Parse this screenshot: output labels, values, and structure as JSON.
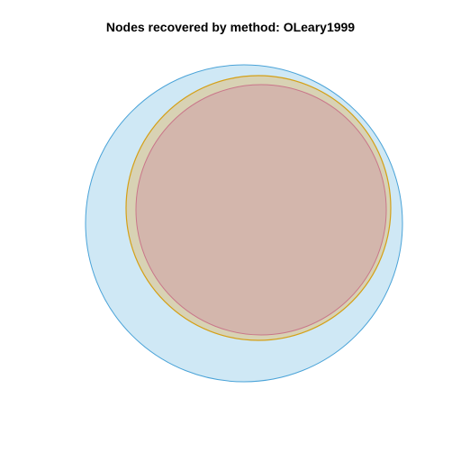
{
  "title": "Nodes recovered by method: OLeary1999",
  "colors": {
    "set_outer_fill": "#cfe8f5",
    "set_outer_stroke": "#4aa3d8",
    "set_middle_fill": "#d8d2b4",
    "set_middle_stroke": "#d4a017",
    "set_inner_fill": "#d3b6ac",
    "set_inner_stroke": "#c9768a",
    "background": "#ffffff"
  }
}
